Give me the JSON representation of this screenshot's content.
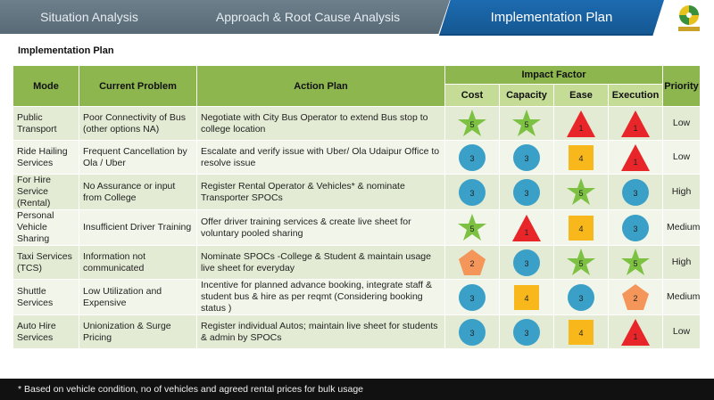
{
  "tabs": [
    {
      "label": "Situation Analysis"
    },
    {
      "label": "Approach & Root Cause Analysis"
    },
    {
      "label": "Implementation Plan"
    }
  ],
  "page_title": "Implementation Plan",
  "table": {
    "headers": {
      "mode": "Mode",
      "problem": "Current Problem",
      "action": "Action Plan",
      "impact": "Impact Factor",
      "priority": "Priority",
      "cost": "Cost",
      "capacity": "Capacity",
      "ease": "Ease",
      "execution": "Execution"
    },
    "rows": [
      {
        "mode": "Public Transport",
        "problem": "Poor Connectivity of Bus (other options NA)",
        "action": "Negotiate with City Bus Operator to extend Bus stop to college location",
        "cost": 5,
        "capacity": 5,
        "ease": 1,
        "execution": 1,
        "priority": "Low"
      },
      {
        "mode": "Ride Hailing Services",
        "problem": "Frequent Cancellation by Ola / Uber",
        "action": "Escalate and verify issue with Uber/ Ola Udaipur Office to resolve issue",
        "cost": 3,
        "capacity": 3,
        "ease": 4,
        "execution": 1,
        "priority": "Low"
      },
      {
        "mode": "For Hire Service (Rental)",
        "problem": "No Assurance or input from College",
        "action": "Register Rental Operator & Vehicles* & nominate Transporter SPOCs",
        "cost": 3,
        "capacity": 3,
        "ease": 5,
        "execution": 3,
        "priority": "High"
      },
      {
        "mode": "Personal Vehicle Sharing",
        "problem": "Insufficient Driver Training",
        "action": "Offer driver training services & create live sheet for voluntary pooled sharing",
        "cost": 5,
        "capacity": 1,
        "ease": 4,
        "execution": 3,
        "priority": "Medium"
      },
      {
        "mode": "Taxi Services (TCS)",
        "problem": "Information not communicated",
        "action": "Nominate SPOCs -College & Student & maintain usage live sheet for everyday",
        "cost": 2,
        "capacity": 3,
        "ease": 5,
        "execution": 5,
        "priority": "High"
      },
      {
        "mode": "Shuttle Services",
        "problem": "Low Utilization and Expensive",
        "action": "Incentive for planned advance booking, integrate staff & student bus & hire as per reqmt (Considering booking status )",
        "cost": 3,
        "capacity": 4,
        "ease": 3,
        "execution": 2,
        "priority": "Medium"
      },
      {
        "mode": "Auto Hire Services",
        "problem": "Unionization & Surge Pricing",
        "action": "Register individual Autos; maintain live sheet for students & admin by SPOCs",
        "cost": 3,
        "capacity": 3,
        "ease": 4,
        "execution": 1,
        "priority": "Low"
      }
    ]
  },
  "score_legend": {
    "1": {
      "shape": "triangle-icon",
      "color": "#e8262a"
    },
    "2": {
      "shape": "pentagon-icon",
      "color": "#f4955a"
    },
    "3": {
      "shape": "circle-icon",
      "color": "#3aa0c8"
    },
    "4": {
      "shape": "square-icon",
      "color": "#f8b81c"
    },
    "5": {
      "shape": "star-icon",
      "color": "#7dc142"
    }
  },
  "footer": "* Based on vehicle condition, no of vehicles and agreed rental prices for bulk usage"
}
